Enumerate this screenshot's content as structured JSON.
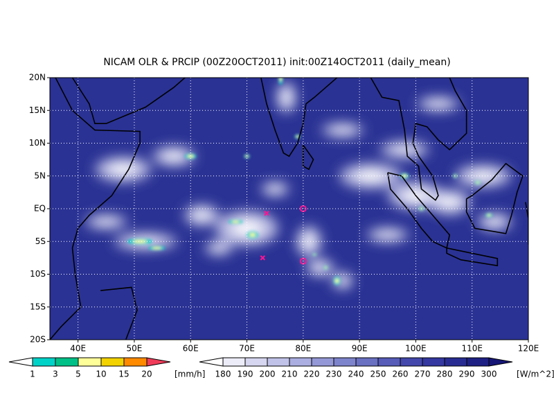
{
  "map": {
    "title": "NICAM OLR & PRCIP (00Z20OCT2011) init:00Z14OCT2011 (daily_mean)",
    "lon_range": [
      35,
      120
    ],
    "lat_range": [
      -20,
      20
    ],
    "lon_ticks": [
      {
        "value": 40,
        "label": "40E"
      },
      {
        "value": 50,
        "label": "50E"
      },
      {
        "value": 60,
        "label": "60E"
      },
      {
        "value": 70,
        "label": "70E"
      },
      {
        "value": 80,
        "label": "80E"
      },
      {
        "value": 90,
        "label": "90E"
      },
      {
        "value": 100,
        "label": "100E"
      },
      {
        "value": 110,
        "label": "110E"
      },
      {
        "value": 120,
        "label": "120E"
      }
    ],
    "lat_ticks": [
      {
        "value": -20,
        "label": "20S"
      },
      {
        "value": -15,
        "label": "15S"
      },
      {
        "value": -10,
        "label": "10S"
      },
      {
        "value": -5,
        "label": "5S"
      },
      {
        "value": 0,
        "label": "EQ"
      },
      {
        "value": 5,
        "label": "5N"
      },
      {
        "value": 10,
        "label": "10N"
      },
      {
        "value": 15,
        "label": "15N"
      },
      {
        "value": 20,
        "label": "20N"
      }
    ],
    "precip_scale": {
      "levels": [
        1,
        3,
        5,
        10,
        15,
        20
      ],
      "unit": "[mm/h]",
      "colors": [
        "#ffffff",
        "#00d2c8",
        "#00c088",
        "#ffff9a",
        "#f2d200",
        "#ff8a00",
        "#f03c5a"
      ]
    },
    "olr_scale": {
      "levels": [
        180,
        190,
        200,
        210,
        220,
        230,
        240,
        250,
        260,
        270,
        280,
        290,
        300
      ],
      "unit": "[W/m^2]",
      "colors": [
        "#ffffff",
        "#ececf8",
        "#d6d6f0",
        "#c0c2e8",
        "#aaaee0",
        "#9498d6",
        "#7e84cc",
        "#6a70c2",
        "#565cb8",
        "#4448ac",
        "#3438a0",
        "#282c92",
        "#1e2084",
        "#161676"
      ]
    }
  }
}
